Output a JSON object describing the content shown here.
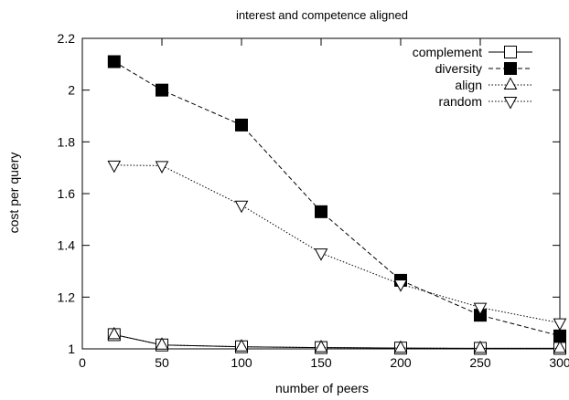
{
  "chart_data": {
    "type": "line",
    "title": "interest and competence aligned",
    "xlabel": "number of peers",
    "ylabel": "cost per query",
    "xlim": [
      0,
      300
    ],
    "ylim": [
      1,
      2.2
    ],
    "xticks": [
      "0",
      "50",
      "100",
      "150",
      "200",
      "250",
      "300"
    ],
    "yticks": [
      "1",
      "1.2",
      "1.4",
      "1.6",
      "1.8",
      "2",
      "2.2"
    ],
    "grid": false,
    "legend_position": "top-right",
    "series": [
      {
        "name": "complement",
        "line": "solid",
        "marker": "open-square",
        "x": [
          20,
          50,
          100,
          150,
          200,
          250,
          300
        ],
        "y": [
          1.055,
          1.015,
          1.008,
          1.005,
          1.003,
          1.002,
          1.002
        ]
      },
      {
        "name": "diversity",
        "line": "dashed",
        "marker": "filled-square",
        "x": [
          20,
          50,
          100,
          150,
          200,
          250,
          300
        ],
        "y": [
          2.11,
          2.0,
          1.865,
          1.53,
          1.265,
          1.13,
          1.05
        ]
      },
      {
        "name": "align",
        "line": "dotted",
        "marker": "open-triangle-up",
        "x": [
          20,
          50,
          100,
          150,
          200,
          250,
          300
        ],
        "y": [
          1.055,
          1.015,
          1.008,
          1.005,
          1.003,
          1.002,
          1.002
        ]
      },
      {
        "name": "random",
        "line": "dotted",
        "marker": "open-triangle-down",
        "x": [
          20,
          50,
          100,
          150,
          200,
          250,
          300
        ],
        "y": [
          1.71,
          1.708,
          1.555,
          1.37,
          1.25,
          1.16,
          1.1
        ]
      }
    ]
  }
}
